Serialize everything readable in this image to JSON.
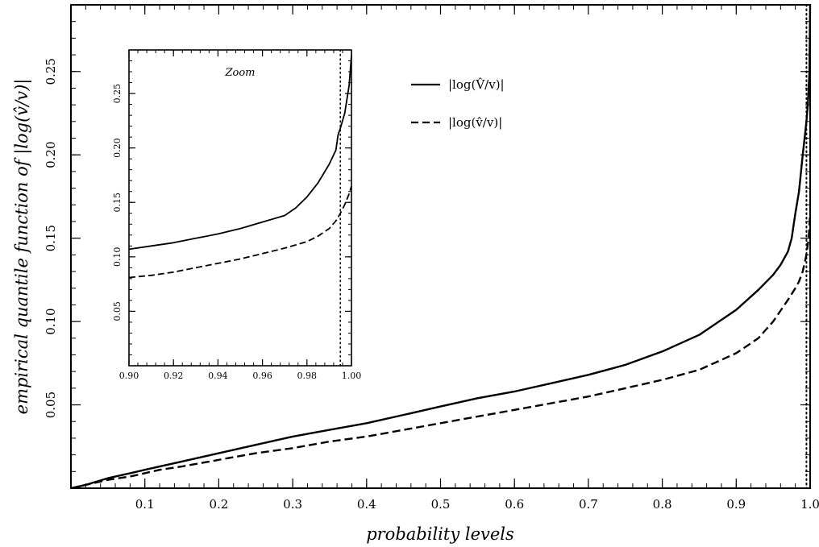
{
  "chart_data": [
    {
      "type": "line",
      "title": "",
      "xlabel": "probability levels",
      "ylabel": "empirical quantile function of |log(v̂/v)|",
      "xlim": [
        0.0,
        1.0
      ],
      "ylim": [
        0.0,
        0.29
      ],
      "xticks": [
        0.1,
        0.2,
        0.3,
        0.4,
        0.5,
        0.6,
        0.7,
        0.8,
        0.9,
        1.0
      ],
      "xtick_labels": [
        "0.1",
        "0.2",
        "0.3",
        "0.4",
        "0.5",
        "0.6",
        "0.7",
        "0.8",
        "0.9",
        "1.0"
      ],
      "yticks": [
        0.05,
        0.1,
        0.15,
        0.2,
        0.25
      ],
      "ytick_labels": [
        "0.05",
        "0.10",
        "0.15",
        "0.20",
        "0.25"
      ],
      "grid": false,
      "legend_position": "top-center",
      "vline_x": 0.995,
      "series": [
        {
          "name": "|log(V̂/v)|",
          "style": "solid",
          "x": [
            0.0,
            0.02,
            0.05,
            0.08,
            0.1,
            0.12,
            0.15,
            0.18,
            0.2,
            0.25,
            0.3,
            0.35,
            0.4,
            0.45,
            0.5,
            0.55,
            0.6,
            0.65,
            0.7,
            0.75,
            0.8,
            0.85,
            0.9,
            0.93,
            0.95,
            0.96,
            0.97,
            0.975,
            0.98,
            0.985,
            0.99,
            0.993,
            0.995,
            0.997,
            0.999,
            1.0
          ],
          "y": [
            0.0,
            0.002,
            0.006,
            0.009,
            0.011,
            0.013,
            0.016,
            0.019,
            0.021,
            0.026,
            0.031,
            0.035,
            0.039,
            0.044,
            0.049,
            0.054,
            0.058,
            0.063,
            0.068,
            0.074,
            0.082,
            0.092,
            0.107,
            0.119,
            0.128,
            0.134,
            0.142,
            0.15,
            0.165,
            0.178,
            0.2,
            0.212,
            0.22,
            0.23,
            0.25,
            0.29
          ]
        },
        {
          "name": "|log(v̂/v)|",
          "style": "dashed",
          "x": [
            0.0,
            0.02,
            0.05,
            0.08,
            0.1,
            0.12,
            0.15,
            0.2,
            0.25,
            0.3,
            0.35,
            0.4,
            0.45,
            0.5,
            0.55,
            0.6,
            0.65,
            0.7,
            0.75,
            0.8,
            0.85,
            0.9,
            0.93,
            0.95,
            0.97,
            0.98,
            0.985,
            0.99,
            0.995,
            0.998,
            1.0
          ],
          "y": [
            0.0,
            0.002,
            0.005,
            0.007,
            0.009,
            0.011,
            0.013,
            0.017,
            0.021,
            0.024,
            0.028,
            0.031,
            0.035,
            0.039,
            0.043,
            0.047,
            0.051,
            0.055,
            0.06,
            0.065,
            0.071,
            0.081,
            0.09,
            0.1,
            0.113,
            0.12,
            0.124,
            0.13,
            0.14,
            0.15,
            0.165
          ]
        }
      ]
    },
    {
      "type": "line",
      "title": "Zoom",
      "xlim": [
        0.9,
        1.0
      ],
      "ylim": [
        0.0,
        0.29
      ],
      "xticks": [
        0.9,
        0.92,
        0.94,
        0.96,
        0.98,
        1.0
      ],
      "xtick_labels": [
        "0.90",
        "0.92",
        "0.94",
        "0.96",
        "0.98",
        "1.00"
      ],
      "yticks": [
        0.05,
        0.1,
        0.15,
        0.2,
        0.25
      ],
      "ytick_labels": [
        "0.05",
        "0.10",
        "0.15",
        "0.20",
        "0.25"
      ],
      "grid": false,
      "vline_x": 0.995,
      "series": [
        {
          "name": "|log(V̂/v)|",
          "style": "solid",
          "x": [
            0.9,
            0.91,
            0.92,
            0.93,
            0.94,
            0.95,
            0.96,
            0.97,
            0.975,
            0.98,
            0.985,
            0.99,
            0.993,
            0.994,
            0.995,
            0.997,
            0.999,
            1.0
          ],
          "y": [
            0.107,
            0.11,
            0.113,
            0.117,
            0.121,
            0.126,
            0.132,
            0.138,
            0.145,
            0.155,
            0.168,
            0.185,
            0.198,
            0.212,
            0.218,
            0.232,
            0.258,
            0.285
          ]
        },
        {
          "name": "|log(v̂/v)|",
          "style": "dashed",
          "x": [
            0.9,
            0.91,
            0.92,
            0.93,
            0.94,
            0.95,
            0.96,
            0.97,
            0.98,
            0.985,
            0.99,
            0.993,
            0.995,
            0.997,
            0.999,
            1.0
          ],
          "y": [
            0.081,
            0.083,
            0.086,
            0.09,
            0.094,
            0.098,
            0.103,
            0.108,
            0.114,
            0.119,
            0.126,
            0.133,
            0.14,
            0.148,
            0.158,
            0.165
          ]
        }
      ]
    }
  ],
  "legend": {
    "items": [
      {
        "label": "|log(V̂/v)|",
        "style": "solid"
      },
      {
        "label": "|log(v̂/v)|",
        "style": "dashed"
      }
    ]
  }
}
